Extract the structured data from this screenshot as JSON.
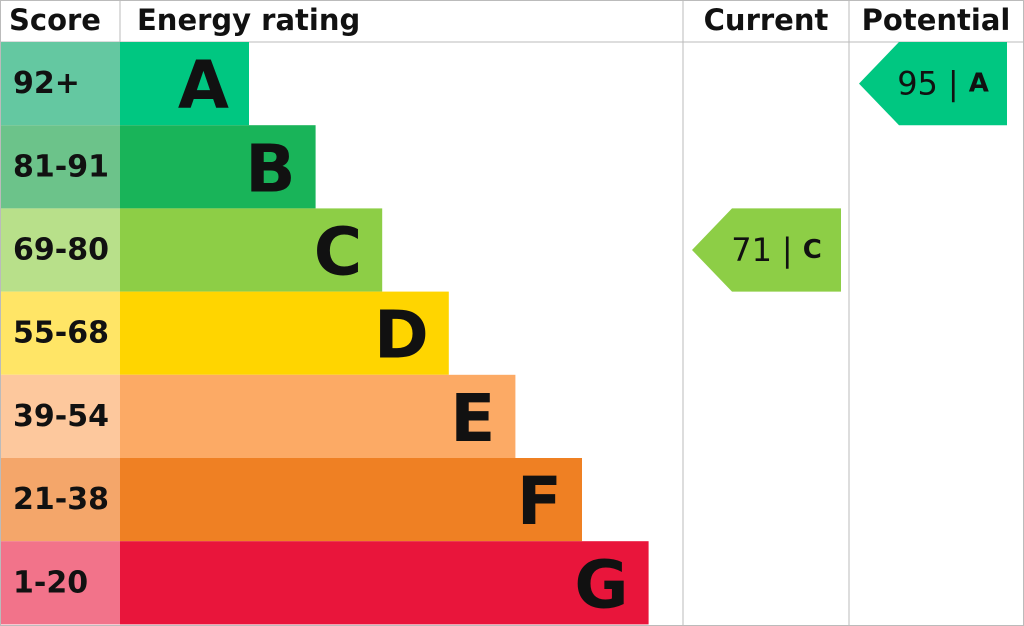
{
  "header": {
    "score": "Score",
    "rating": "Energy rating",
    "current": "Current",
    "potential": "Potential"
  },
  "bands": [
    {
      "score": "92+",
      "letter": "A",
      "color": "#00c781",
      "light": "#64c8a1"
    },
    {
      "score": "81-91",
      "letter": "B",
      "color": "#19b459",
      "light": "#6cc38a"
    },
    {
      "score": "69-80",
      "letter": "C",
      "color": "#8dce46",
      "light": "#b8e08a"
    },
    {
      "score": "55-68",
      "letter": "D",
      "color": "#ffd500",
      "light": "#ffe566"
    },
    {
      "score": "39-54",
      "letter": "E",
      "color": "#fcaa65",
      "light": "#fdc89d"
    },
    {
      "score": "21-38",
      "letter": "F",
      "color": "#ef8023",
      "light": "#f4a66a"
    },
    {
      "score": "1-20",
      "letter": "G",
      "color": "#e9153b",
      "light": "#f2738a"
    }
  ],
  "current": {
    "score": 71,
    "separator": "|",
    "rating": "C"
  },
  "potential": {
    "score": 95,
    "separator": "|",
    "rating": "A"
  }
}
